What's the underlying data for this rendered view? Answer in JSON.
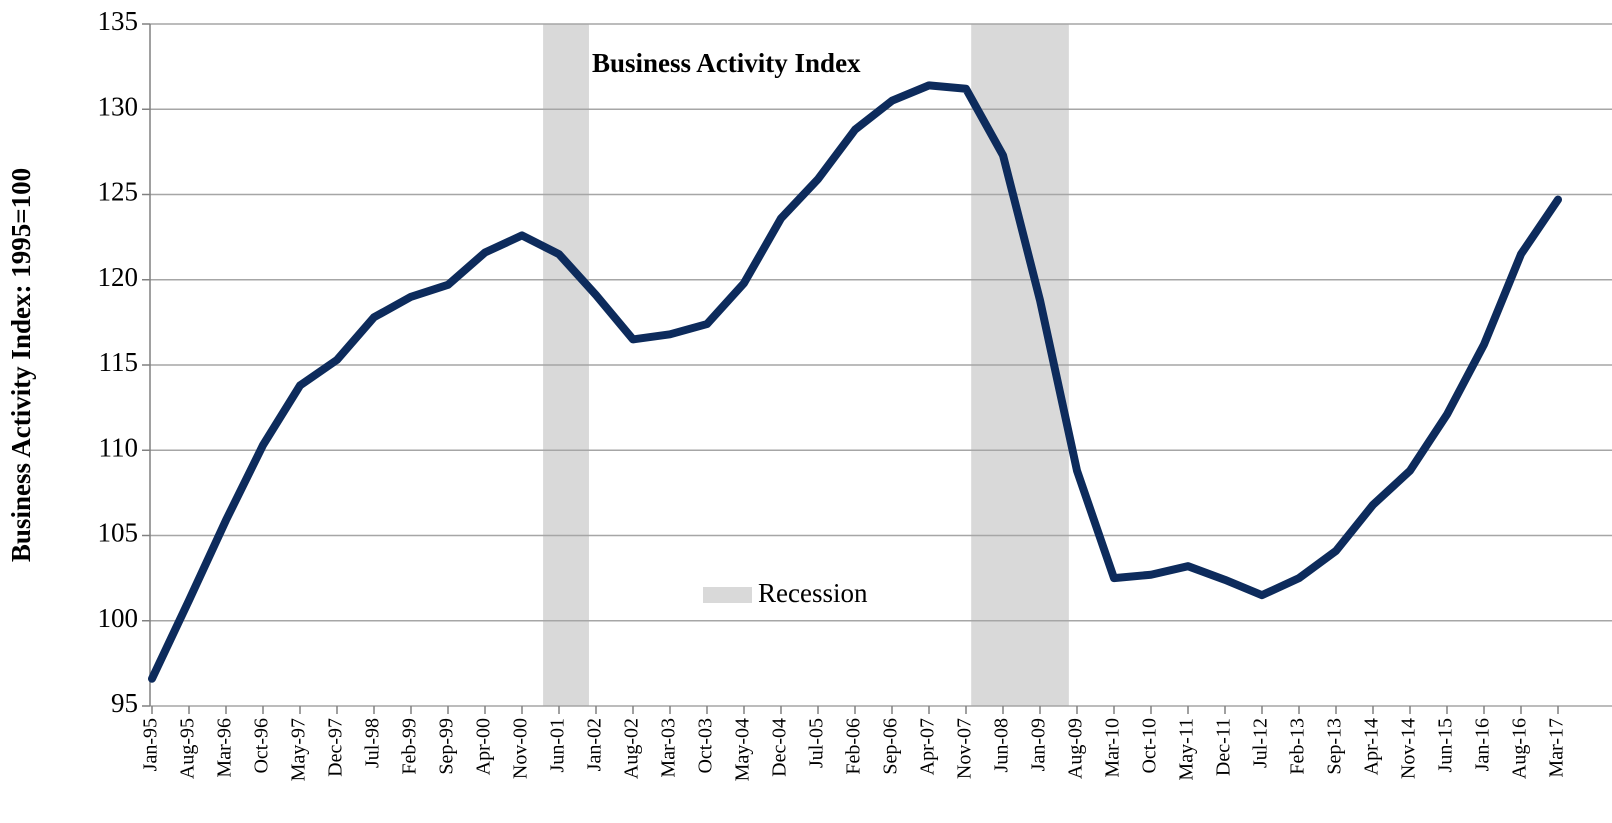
{
  "chart_data": {
    "type": "line",
    "ylabel": "Business Activity Index: 1995=100",
    "categories": [
      "Jan-95",
      "Aug-95",
      "Mar-96",
      "Oct-96",
      "May-97",
      "Dec-97",
      "Jul-98",
      "Feb-99",
      "Sep-99",
      "Apr-00",
      "Nov-00",
      "Jun-01",
      "Jan-02",
      "Aug-02",
      "Mar-03",
      "Oct-03",
      "May-04",
      "Dec-04",
      "Jul-05",
      "Feb-06",
      "Sep-06",
      "Apr-07",
      "Nov-07",
      "Jun-08",
      "Jan-09",
      "Aug-09",
      "Mar-10",
      "Oct-10",
      "May-11",
      "Dec-11",
      "Jul-12",
      "Feb-13",
      "Sep-13",
      "Apr-14",
      "Nov-14",
      "Jun-15",
      "Jan-16",
      "Aug-16",
      "Mar-17"
    ],
    "series": [
      {
        "name": "Business Activity Index",
        "color": "#0d2b5c",
        "values": [
          96.6,
          101.2,
          105.9,
          110.3,
          113.8,
          115.3,
          117.8,
          119.0,
          119.7,
          121.6,
          122.6,
          121.5,
          119.1,
          116.5,
          116.8,
          117.4,
          119.8,
          123.6,
          125.9,
          128.8,
          130.5,
          131.4,
          131.2,
          127.3,
          118.8,
          108.8,
          102.5,
          102.7,
          103.2,
          102.4,
          101.5,
          102.5,
          104.1,
          106.8,
          108.8,
          112.1,
          116.2,
          121.5,
          124.7
        ]
      }
    ],
    "shaded_ranges": [
      [
        10.57,
        11.81
      ],
      [
        22.14,
        24.78
      ]
    ],
    "legend": {
      "label": "Recession",
      "color": "#d9d9d9"
    },
    "ylim": [
      95,
      135
    ],
    "yticks": [
      95,
      100,
      105,
      110,
      115,
      120,
      125,
      130,
      135
    ],
    "grid": true
  }
}
